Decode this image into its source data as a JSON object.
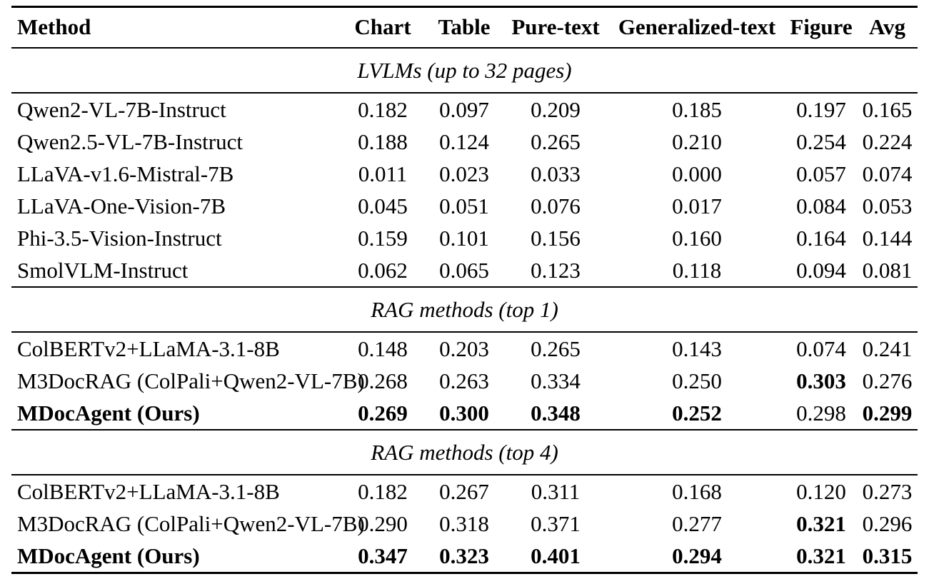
{
  "colors": {
    "text": "#000000",
    "background": "#ffffff",
    "rule": "#000000"
  },
  "table": {
    "header": {
      "method": "Method",
      "cols": [
        "Chart",
        "Table",
        "Pure-text",
        "Generalized-text",
        "Figure",
        "Avg"
      ]
    },
    "sections": [
      {
        "title": "LVLMs (up to 32 pages)",
        "rows": [
          {
            "method": "Qwen2-VL-7B-Instruct",
            "bold_method": false,
            "values": [
              "0.182",
              "0.097",
              "0.209",
              "0.185",
              "0.197",
              "0.165"
            ],
            "bold_values": []
          },
          {
            "method": "Qwen2.5-VL-7B-Instruct",
            "bold_method": false,
            "values": [
              "0.188",
              "0.124",
              "0.265",
              "0.210",
              "0.254",
              "0.224"
            ],
            "bold_values": []
          },
          {
            "method": "LLaVA-v1.6-Mistral-7B",
            "bold_method": false,
            "values": [
              "0.011",
              "0.023",
              "0.033",
              "0.000",
              "0.057",
              "0.074"
            ],
            "bold_values": []
          },
          {
            "method": "LLaVA-One-Vision-7B",
            "bold_method": false,
            "values": [
              "0.045",
              "0.051",
              "0.076",
              "0.017",
              "0.084",
              "0.053"
            ],
            "bold_values": []
          },
          {
            "method": "Phi-3.5-Vision-Instruct",
            "bold_method": false,
            "values": [
              "0.159",
              "0.101",
              "0.156",
              "0.160",
              "0.164",
              "0.144"
            ],
            "bold_values": []
          },
          {
            "method": "SmolVLM-Instruct",
            "bold_method": false,
            "values": [
              "0.062",
              "0.065",
              "0.123",
              "0.118",
              "0.094",
              "0.081"
            ],
            "bold_values": []
          }
        ]
      },
      {
        "title": "RAG methods (top 1)",
        "rows": [
          {
            "method": "ColBERTv2+LLaMA-3.1-8B",
            "bold_method": false,
            "values": [
              "0.148",
              "0.203",
              "0.265",
              "0.143",
              "0.074",
              "0.241"
            ],
            "bold_values": []
          },
          {
            "method": "M3DocRAG (ColPali+Qwen2-VL-7B)",
            "bold_method": false,
            "values": [
              "0.268",
              "0.263",
              "0.334",
              "0.250",
              "0.303",
              "0.276"
            ],
            "bold_values": [
              4
            ]
          },
          {
            "method": "MDocAgent (Ours)",
            "bold_method": true,
            "values": [
              "0.269",
              "0.300",
              "0.348",
              "0.252",
              "0.298",
              "0.299"
            ],
            "bold_values": [
              0,
              1,
              2,
              3,
              5
            ]
          }
        ]
      },
      {
        "title": "RAG methods (top 4)",
        "rows": [
          {
            "method": "ColBERTv2+LLaMA-3.1-8B",
            "bold_method": false,
            "values": [
              "0.182",
              "0.267",
              "0.311",
              "0.168",
              "0.120",
              "0.273"
            ],
            "bold_values": []
          },
          {
            "method": "M3DocRAG (ColPali+Qwen2-VL-7B)",
            "bold_method": false,
            "values": [
              "0.290",
              "0.318",
              "0.371",
              "0.277",
              "0.321",
              "0.296"
            ],
            "bold_values": [
              4
            ]
          },
          {
            "method": "MDocAgent (Ours)",
            "bold_method": true,
            "values": [
              "0.347",
              "0.323",
              "0.401",
              "0.294",
              "0.321",
              "0.315"
            ],
            "bold_values": [
              0,
              1,
              2,
              3,
              4,
              5
            ]
          }
        ]
      }
    ]
  }
}
